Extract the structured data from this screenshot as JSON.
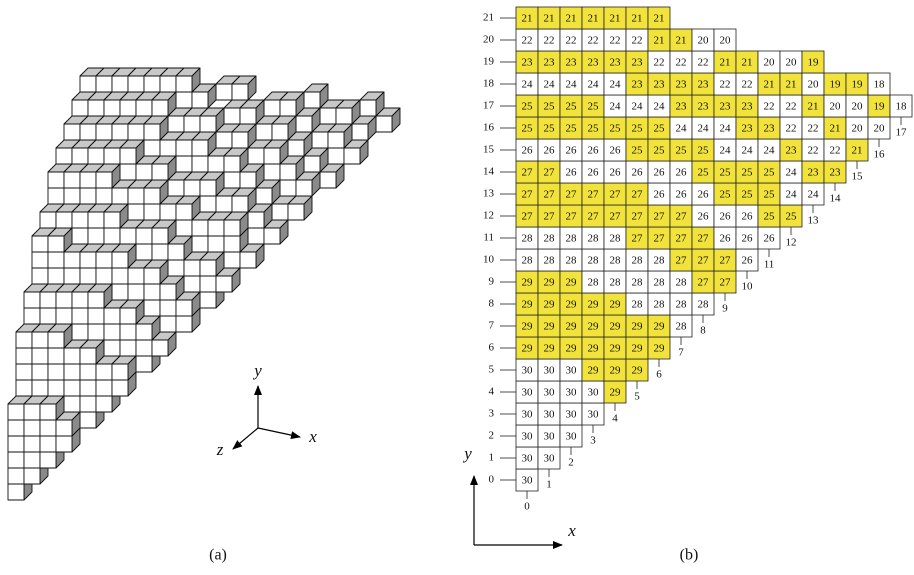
{
  "panels": [
    {
      "caption": "(a)",
      "axes": {
        "x": "x",
        "y": "y",
        "z": "z"
      }
    },
    {
      "caption": "(b)",
      "axes": {
        "x": "x",
        "y": "y"
      }
    }
  ],
  "grid": {
    "fill_odd": "#f2e33c",
    "fill_even": "#ffffff",
    "row_labels": [
      0,
      1,
      2,
      3,
      4,
      5,
      6,
      7,
      8,
      9,
      10,
      11,
      12,
      13,
      14,
      15,
      16,
      17,
      18,
      19,
      20,
      21
    ],
    "col_labels": [
      0,
      1,
      2,
      3,
      4,
      5,
      6,
      7,
      8,
      9,
      10,
      11,
      12,
      13,
      14,
      15,
      16,
      17
    ],
    "rows": [
      [
        30
      ],
      [
        30,
        30
      ],
      [
        30,
        30,
        30
      ],
      [
        30,
        30,
        30,
        30
      ],
      [
        30,
        30,
        30,
        30,
        29
      ],
      [
        30,
        30,
        30,
        29,
        29,
        29
      ],
      [
        29,
        29,
        29,
        29,
        29,
        29,
        29
      ],
      [
        29,
        29,
        29,
        29,
        29,
        29,
        29,
        28
      ],
      [
        29,
        29,
        29,
        29,
        29,
        28,
        28,
        28,
        28
      ],
      [
        29,
        29,
        29,
        28,
        28,
        28,
        28,
        28,
        27,
        27
      ],
      [
        28,
        28,
        28,
        28,
        28,
        28,
        28,
        27,
        27,
        27,
        26
      ],
      [
        28,
        28,
        28,
        28,
        28,
        27,
        27,
        27,
        27,
        26,
        26,
        26
      ],
      [
        27,
        27,
        27,
        27,
        27,
        27,
        27,
        27,
        26,
        26,
        26,
        25,
        25
      ],
      [
        27,
        27,
        27,
        27,
        27,
        27,
        26,
        26,
        26,
        25,
        25,
        25,
        24,
        24
      ],
      [
        27,
        27,
        26,
        26,
        26,
        26,
        26,
        26,
        25,
        25,
        25,
        25,
        24,
        23,
        23
      ],
      [
        26,
        26,
        26,
        26,
        26,
        25,
        25,
        25,
        25,
        24,
        24,
        24,
        23,
        22,
        22,
        21
      ],
      [
        25,
        25,
        25,
        25,
        25,
        25,
        25,
        24,
        24,
        24,
        23,
        23,
        22,
        22,
        21,
        20,
        20
      ],
      [
        25,
        25,
        25,
        25,
        24,
        24,
        24,
        23,
        23,
        23,
        23,
        22,
        22,
        21,
        20,
        20,
        19,
        18
      ],
      [
        24,
        24,
        24,
        24,
        24,
        23,
        23,
        23,
        23,
        22,
        22,
        21,
        21,
        20,
        19,
        19,
        18
      ],
      [
        23,
        23,
        23,
        23,
        23,
        23,
        22,
        22,
        22,
        21,
        21,
        20,
        20,
        19
      ],
      [
        22,
        22,
        22,
        22,
        22,
        22,
        21,
        21,
        20,
        20
      ],
      [
        21,
        21,
        21,
        21,
        21,
        21,
        21
      ]
    ]
  }
}
